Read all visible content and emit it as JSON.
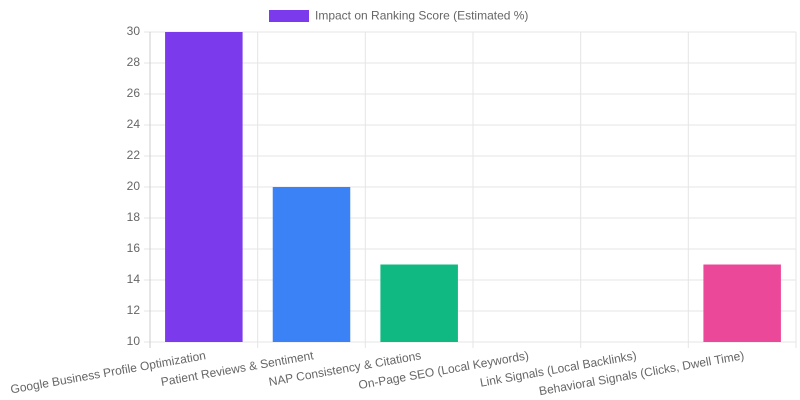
{
  "chart_data": {
    "type": "bar",
    "categories": [
      "Google Business Profile Optimization",
      "Patient Reviews & Sentiment",
      "NAP Consistency & Citations",
      "On-Page SEO (Local Keywords)",
      "Link Signals (Local Backlinks)",
      "Behavioral Signals (Clicks, Dwell Time)"
    ],
    "series": [
      {
        "name": "Impact on Ranking Score (Estimated %)",
        "colors": [
          "#7c3aed",
          "#3b82f6",
          "#10b981",
          "#f59e0b",
          "#ef4444",
          "#ec4899"
        ],
        "values": [
          30,
          20,
          15,
          10,
          10,
          15
        ]
      }
    ],
    "ylim": [
      10,
      30
    ],
    "yticks": [
      10,
      12,
      14,
      16,
      18,
      20,
      22,
      24,
      26,
      28,
      30
    ],
    "grid": true
  }
}
